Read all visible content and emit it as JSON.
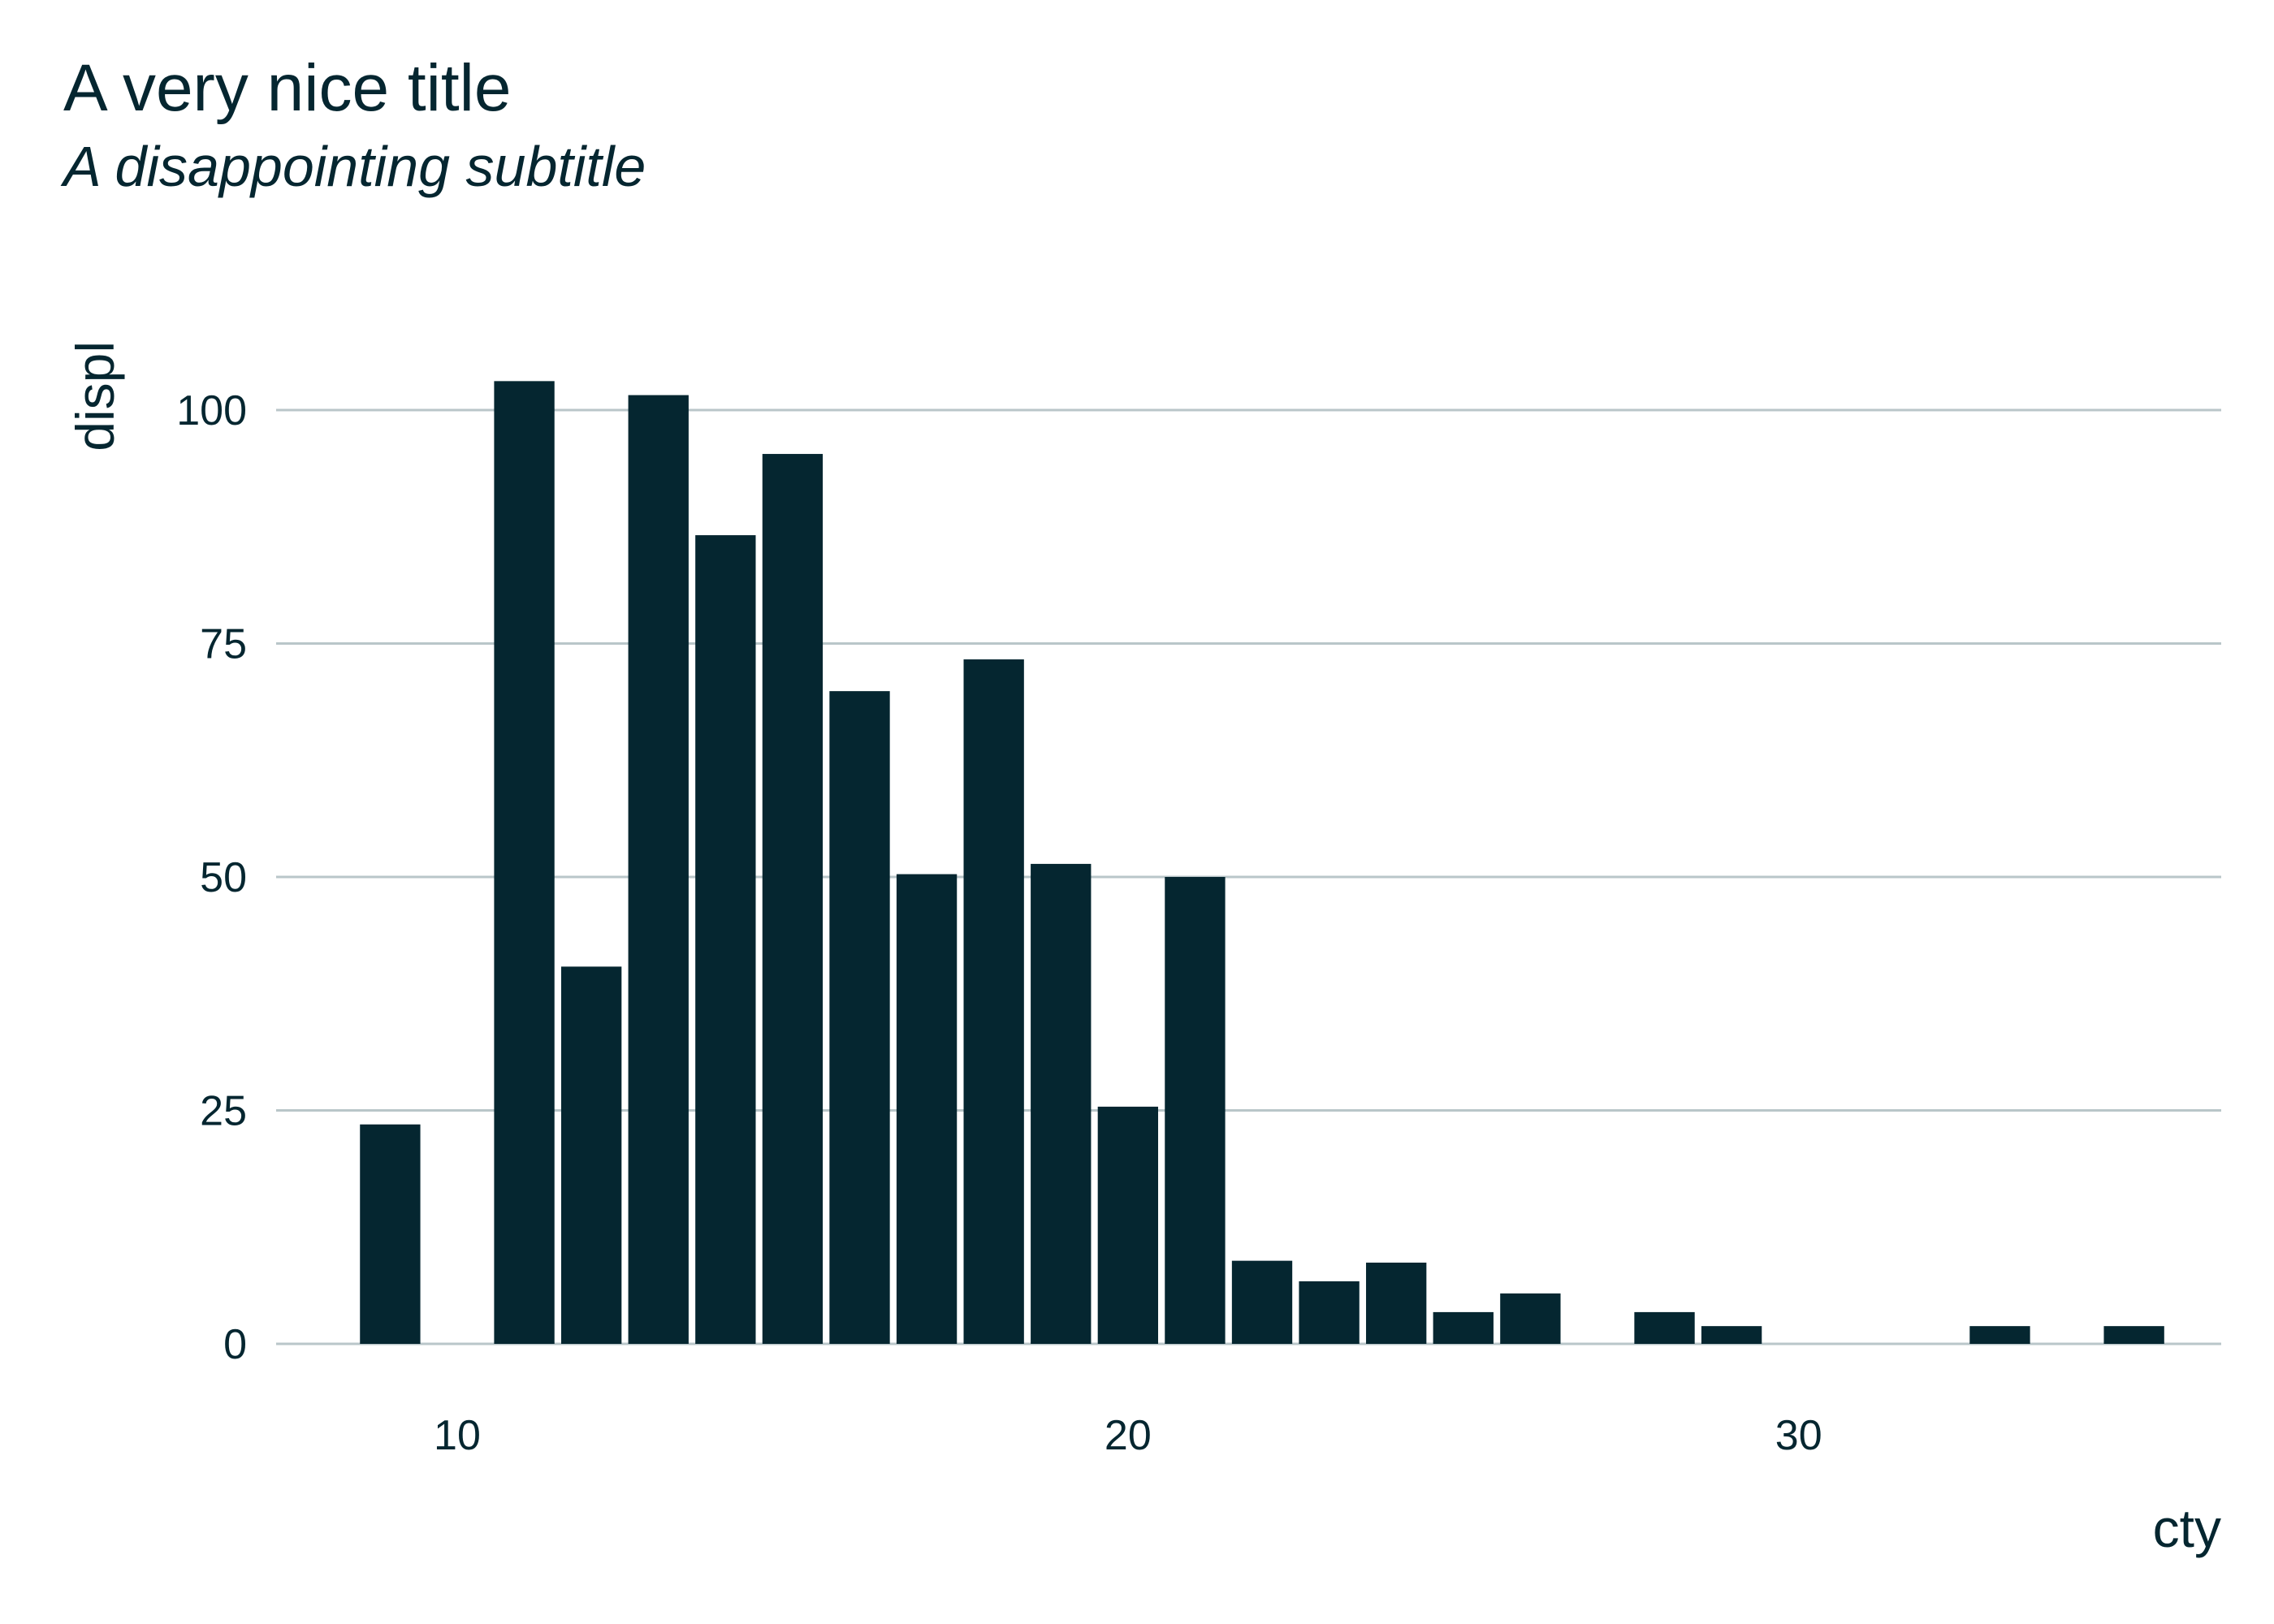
{
  "chart_data": {
    "type": "bar",
    "title": "A very nice title",
    "subtitle": "A disappointing subtitle",
    "xlabel": "cty",
    "ylabel": "displ",
    "xlim": [
      7.3,
      36.3
    ],
    "ylim": [
      0,
      110
    ],
    "xticks": [
      10,
      20,
      30
    ],
    "yticks": [
      0,
      25,
      50,
      75,
      100
    ],
    "grid": "horizontal-major",
    "bar_color": "#052630",
    "grid_color": "#b9c6c9",
    "x": [
      9,
      11,
      12,
      13,
      14,
      15,
      16,
      17,
      18,
      19,
      20,
      21,
      22,
      23,
      24,
      25,
      26,
      28,
      29,
      33,
      35
    ],
    "values": [
      23.5,
      103.1,
      40.4,
      101.6,
      86.6,
      95.3,
      69.9,
      50.3,
      73.3,
      51.4,
      25.4,
      50.0,
      8.9,
      6.7,
      8.7,
      3.4,
      5.4,
      3.4,
      1.9,
      1.9,
      1.9
    ]
  }
}
